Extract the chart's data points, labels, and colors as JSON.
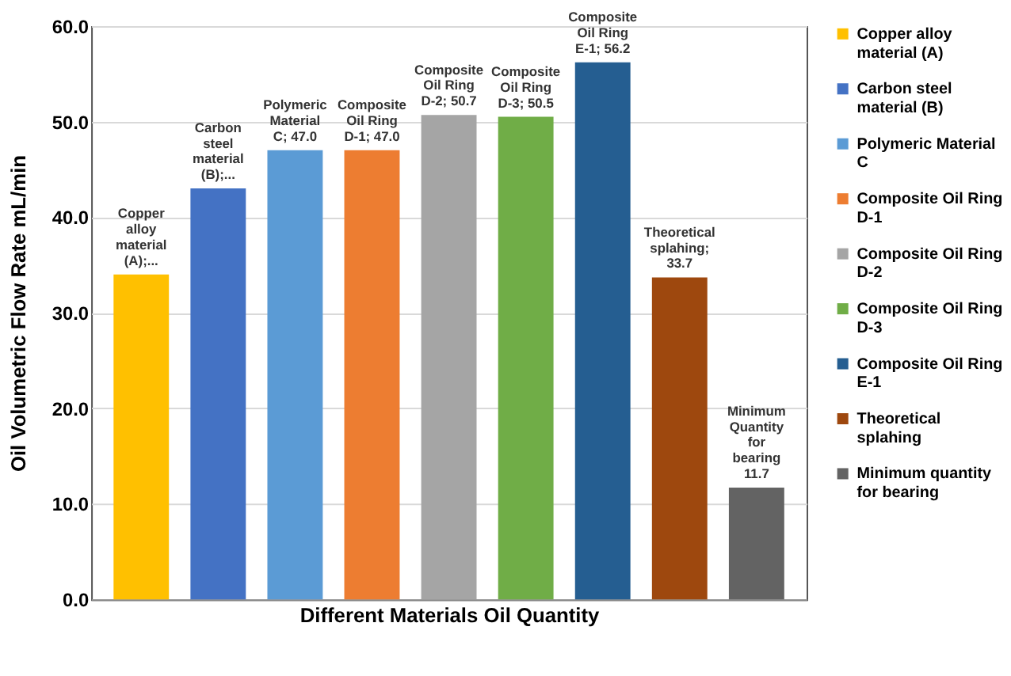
{
  "chart_data": {
    "type": "bar",
    "xlabel": "Different Materials Oil Quantity",
    "ylabel": "Oil Volumetric Flow Rate mL/min",
    "categories": [
      null
    ],
    "series": [
      {
        "name": "Copper alloy material (A)",
        "color": "#ffc000",
        "values": [
          34.0
        ],
        "value_labels": [
          "Copper alloy material (A);..."
        ]
      },
      {
        "name": "Carbon steel material (B)",
        "color": "#4472c4",
        "values": [
          43.0
        ],
        "value_labels": [
          "Carbon steel material (B);..."
        ]
      },
      {
        "name": "Polymeric Material C",
        "color": "#5b9bd5",
        "values": [
          47.0
        ],
        "value_labels": [
          "Polymeric Material C; 47.0"
        ]
      },
      {
        "name": "Composite Oil Ring D-1",
        "color": "#ed7d31",
        "values": [
          47.0
        ],
        "value_labels": [
          "Composite Oil Ring D-1; 47.0"
        ]
      },
      {
        "name": "Composite Oil Ring D-2",
        "color": "#a5a5a5",
        "values": [
          50.7
        ],
        "value_labels": [
          "Composite Oil Ring D-2; 50.7"
        ]
      },
      {
        "name": "Composite Oil Ring D-3",
        "color": "#70ad47",
        "values": [
          50.5
        ],
        "value_labels": [
          "Composite Oil Ring  D-3; 50.5"
        ]
      },
      {
        "name": "Composite Oil Ring E-1",
        "color": "#255e91",
        "values": [
          56.2
        ],
        "value_labels": [
          "Composite Oil Ring E-1; 56.2"
        ]
      },
      {
        "name": "Theoretical splahing",
        "color": "#9e480e",
        "values": [
          33.7
        ],
        "value_labels": [
          "Theoretical splahing; 33.7"
        ]
      },
      {
        "name": "Minimum quantity for bearing",
        "color": "#636363",
        "values": [
          11.7
        ],
        "value_labels": [
          "Minimum Quantity for bearing 11.7"
        ]
      }
    ],
    "ylim": [
      0,
      60
    ],
    "yticks": [
      {
        "value": 0,
        "label": "0.0"
      },
      {
        "value": 10,
        "label": "10.0"
      },
      {
        "value": 20,
        "label": "20.0"
      },
      {
        "value": 30,
        "label": "30.0"
      },
      {
        "value": 40,
        "label": "40.0"
      },
      {
        "value": 50,
        "label": "50.0"
      },
      {
        "value": 60,
        "label": "60.0"
      }
    ],
    "grid": "y",
    "legend": "right"
  }
}
